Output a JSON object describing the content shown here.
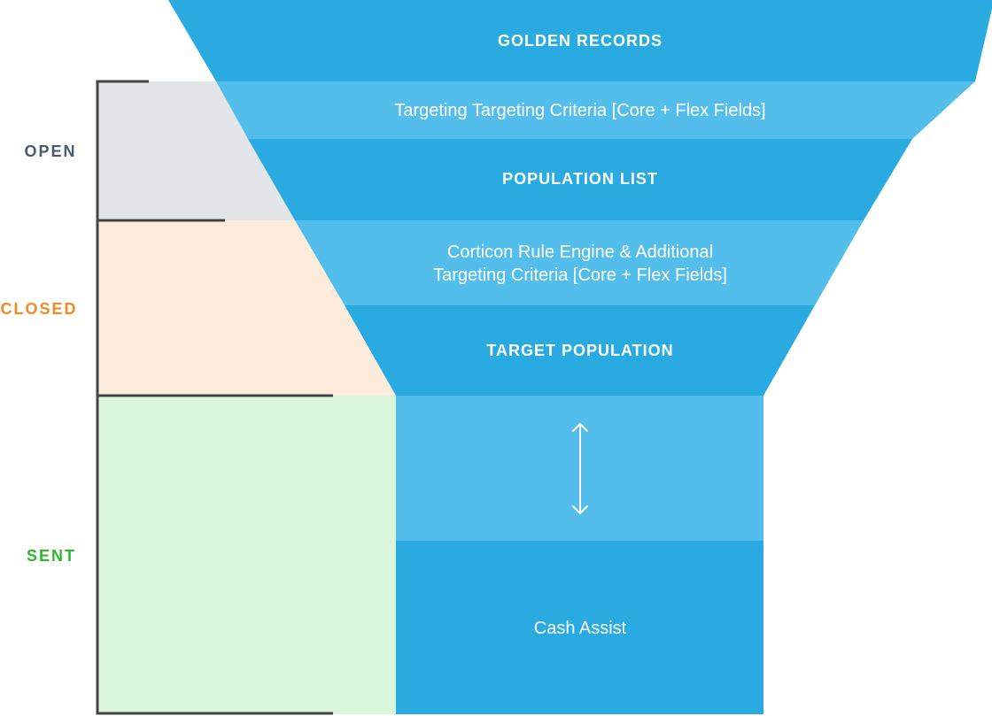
{
  "funnel": {
    "golden_records": "GOLDEN RECORDS",
    "targeting_criteria": "Targeting Targeting Criteria [Core + Flex Fields]",
    "population_list": "POPULATION LIST",
    "rule_engine_line1": "Corticon Rule Engine & Additional",
    "rule_engine_line2": "Targeting Criteria [Core + Flex Fields]",
    "target_population": "TARGET POPULATION",
    "cash_assist": "Cash Assist"
  },
  "stages": {
    "open": "OPEN",
    "closed": "CLOSED",
    "sent": "SENT"
  },
  "colors": {
    "dark_blue": "#29ABE2",
    "light_blue": "#53BDEB",
    "open_fill": "#E3E6E8",
    "closed_fill": "#FDEBDC",
    "sent_fill": "#DAF7DC",
    "bracket": "#444444",
    "open_text": "#4A5A68",
    "closed_text": "#F08A24",
    "sent_text": "#2DB82D"
  }
}
